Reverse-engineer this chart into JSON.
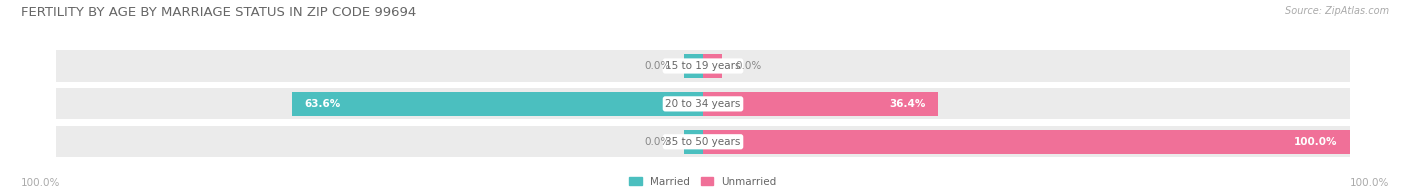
{
  "title": "FERTILITY BY AGE BY MARRIAGE STATUS IN ZIP CODE 99694",
  "source": "Source: ZipAtlas.com",
  "categories": [
    "15 to 19 years",
    "20 to 34 years",
    "35 to 50 years"
  ],
  "married": [
    0.0,
    63.6,
    0.0
  ],
  "unmarried": [
    0.0,
    36.4,
    100.0
  ],
  "married_color": "#4bbfbf",
  "unmarried_color": "#f07098",
  "bar_bg_color": "#ebebeb",
  "bar_height": 0.62,
  "married_label": "Married",
  "unmarried_label": "Unmarried",
  "x_left_label": "100.0%",
  "x_right_label": "100.0%",
  "title_fontsize": 9.5,
  "source_fontsize": 7,
  "label_fontsize": 7.5,
  "value_fontsize": 7.5,
  "tick_fontsize": 7.5
}
